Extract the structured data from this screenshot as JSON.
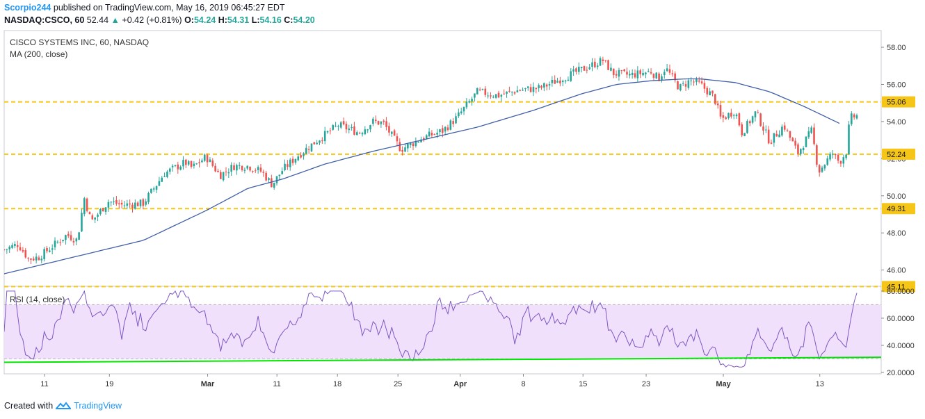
{
  "header": {
    "author": "Scorpio244",
    "published": "published on TradingView.com, May 16, 2019 06:45:27 EDT",
    "symbol": "NASDAQ:CSCO, 60",
    "last": "52.44",
    "change": "+0.42 (+0.81%)",
    "ohlc": [
      {
        "k": "O:",
        "v": "54.24"
      },
      {
        "k": "H:",
        "v": "54.31"
      },
      {
        "k": "L:",
        "v": "54.16"
      },
      {
        "k": "C:",
        "v": "54.20"
      }
    ]
  },
  "legend": {
    "title": "CISCO SYSTEMS INC, 60, NASDAQ",
    "ma": "MA (200, close)",
    "rsi": "RSI (14, close)"
  },
  "footer": {
    "created_with": "Created with",
    "brand": "TradingView"
  },
  "colors": {
    "up": "#26a69a",
    "down": "#ef5350",
    "ma": "#3f5fa8",
    "level": "#f5c518",
    "rsi": "#7e57c2",
    "rsi_band": "#f0e0fb",
    "trend": "#00e600"
  },
  "chart_data": [
    {
      "type": "candlestick",
      "title": "CISCO SYSTEMS INC, 60, NASDAQ",
      "interval": "60",
      "ylim": [
        45.2,
        58.9
      ],
      "y_ticks": [
        "58.00",
        "56.00",
        "54.00",
        "52.00",
        "50.00",
        "48.00",
        "46.00"
      ],
      "x_ticks": [
        "11",
        "19",
        "Mar",
        "11",
        "18",
        "25",
        "Apr",
        "8",
        "15",
        "23",
        "May",
        "13"
      ],
      "horizontal_levels": [
        {
          "label": "55.06",
          "value": 55.06
        },
        {
          "label": "52.24",
          "value": 52.24
        },
        {
          "label": "49.31",
          "value": 49.31
        },
        {
          "label": "45.11",
          "value": 45.11
        }
      ],
      "price_path": [
        [
          0,
          47.1
        ],
        [
          0.02,
          47.4
        ],
        [
          0.035,
          46.6
        ],
        [
          0.05,
          46.7
        ],
        [
          0.07,
          47.3
        ],
        [
          0.09,
          47.9
        ],
        [
          0.105,
          47.6
        ],
        [
          0.115,
          49.9
        ],
        [
          0.125,
          48.6
        ],
        [
          0.15,
          49.7
        ],
        [
          0.17,
          49.5
        ],
        [
          0.2,
          49.6
        ],
        [
          0.23,
          51.2
        ],
        [
          0.26,
          51.8
        ],
        [
          0.27,
          51.5
        ],
        [
          0.29,
          52.1
        ],
        [
          0.31,
          51.1
        ],
        [
          0.33,
          51.6
        ],
        [
          0.35,
          51.6
        ],
        [
          0.37,
          51.3
        ],
        [
          0.385,
          50.6
        ],
        [
          0.4,
          51.4
        ],
        [
          0.42,
          52.1
        ],
        [
          0.45,
          53.0
        ],
        [
          0.48,
          53.8
        ],
        [
          0.51,
          53.4
        ],
        [
          0.53,
          54.0
        ],
        [
          0.545,
          53.9
        ],
        [
          0.57,
          52.5
        ],
        [
          0.6,
          53.1
        ],
        [
          0.63,
          53.5
        ],
        [
          0.65,
          54.2
        ],
        [
          0.68,
          55.6
        ],
        [
          0.71,
          55.4
        ],
        [
          0.74,
          55.7
        ],
        [
          0.77,
          55.8
        ],
        [
          0.8,
          56.3
        ],
        [
          0.83,
          56.8
        ],
        [
          0.86,
          57.3
        ],
        [
          0.875,
          56.6
        ],
        [
          0.9,
          56.5
        ],
        [
          0.93,
          56.7
        ],
        [
          0.94,
          56.3
        ],
        [
          0.95,
          56.9
        ],
        [
          0.97,
          55.8
        ],
        [
          0.985,
          56.2
        ],
        [
          1.0,
          56.0
        ]
      ],
      "ma_200": [
        [
          0,
          45.8
        ],
        [
          0.1,
          46.7
        ],
        [
          0.2,
          47.6
        ],
        [
          0.29,
          49.2
        ],
        [
          0.35,
          50.4
        ],
        [
          0.4,
          50.9
        ],
        [
          0.46,
          51.7
        ],
        [
          0.53,
          52.4
        ],
        [
          0.6,
          53.0
        ],
        [
          0.68,
          53.7
        ],
        [
          0.76,
          54.6
        ],
        [
          0.83,
          55.5
        ],
        [
          0.88,
          56.0
        ],
        [
          0.93,
          56.2
        ],
        [
          0.98,
          56.3
        ],
        [
          1.0,
          56.3
        ]
      ],
      "note_ma_tail": [
        [
          1.0,
          56.3
        ],
        [
          1.05,
          56.1
        ],
        [
          1.1,
          55.6
        ],
        [
          1.15,
          54.8
        ],
        [
          1.2,
          53.9
        ]
      ],
      "tail_path": [
        [
          1.0,
          56.0
        ],
        [
          1.02,
          55.3
        ],
        [
          1.03,
          54.1
        ],
        [
          1.05,
          54.6
        ],
        [
          1.06,
          53.4
        ],
        [
          1.08,
          54.5
        ],
        [
          1.1,
          52.9
        ],
        [
          1.12,
          53.8
        ],
        [
          1.14,
          52.3
        ],
        [
          1.16,
          53.5
        ],
        [
          1.17,
          51.3
        ],
        [
          1.19,
          52.3
        ],
        [
          1.2,
          51.8
        ],
        [
          1.21,
          52.4
        ],
        [
          1.215,
          54.2
        ],
        [
          1.225,
          54.3
        ]
      ]
    },
    {
      "type": "line",
      "title": "RSI (14, close)",
      "ylim": [
        19,
        83
      ],
      "y_ticks": [
        "80.0000",
        "60.0000",
        "40.0000",
        "20.0000"
      ],
      "band": [
        30,
        70
      ],
      "trendline": [
        [
          0,
          27.5
        ],
        [
          1.225,
          31.2
        ]
      ]
    }
  ]
}
